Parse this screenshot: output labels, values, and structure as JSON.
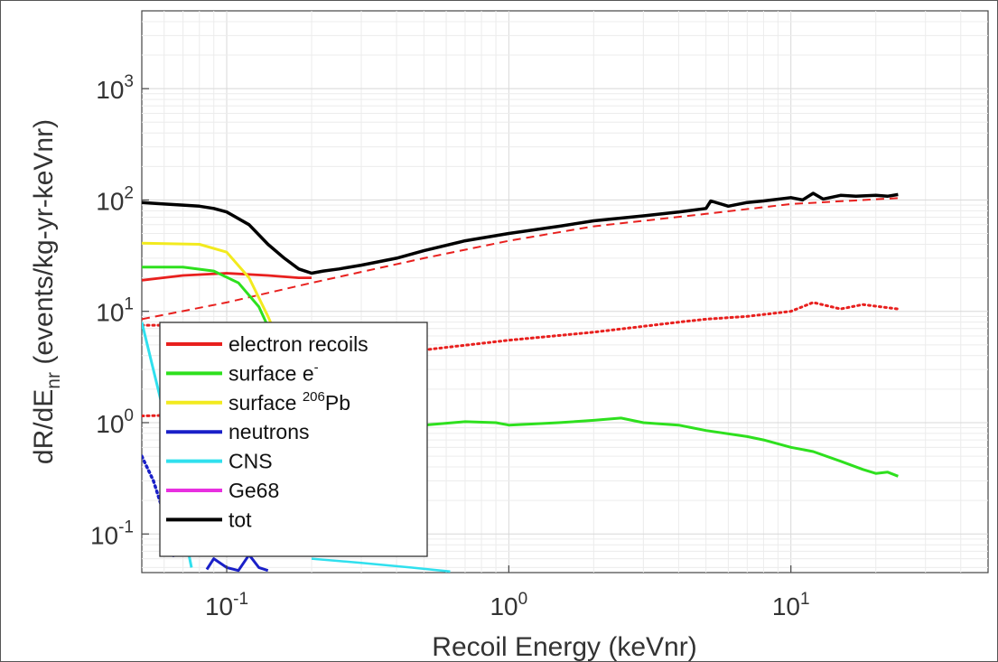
{
  "chart_data": {
    "type": "line",
    "xlabel": "Recoil Energy (keVnr)",
    "ylabel_main": "dR/dE",
    "ylabel_sub": "nr",
    "ylabel_rest": " (events/kg-yr-keVnr)",
    "x_scale": "log",
    "y_scale": "log",
    "xlim": [
      0.05,
      50
    ],
    "ylim": [
      0.045,
      5000
    ],
    "grid": true,
    "legend_position": "bottom-left",
    "x_ticks": [
      {
        "value": 0.1,
        "base": "10",
        "exp": "-1"
      },
      {
        "value": 1,
        "base": "10",
        "exp": "0"
      },
      {
        "value": 10,
        "base": "10",
        "exp": "1"
      }
    ],
    "y_ticks": [
      {
        "value": 0.1,
        "base": "10",
        "exp": "-1"
      },
      {
        "value": 1,
        "base": "10",
        "exp": "0"
      },
      {
        "value": 10,
        "base": "10",
        "exp": "1"
      },
      {
        "value": 100,
        "base": "10",
        "exp": "2"
      },
      {
        "value": 1000,
        "base": "10",
        "exp": "3"
      }
    ],
    "legend": [
      {
        "label": "electron recoils",
        "sup": "",
        "suffix": "",
        "color": "#e8201e"
      },
      {
        "label": "surface e",
        "sup": "-",
        "suffix": "",
        "color": "#2ee01e"
      },
      {
        "label": "surface ",
        "sup": "206",
        "suffix": "Pb",
        "color": "#f2ea1e"
      },
      {
        "label": "neutrons",
        "sup": "",
        "suffix": "",
        "color": "#1a20c8"
      },
      {
        "label": "CNS",
        "sup": "",
        "suffix": "",
        "color": "#30e0ee"
      },
      {
        "label": "Ge68",
        "sup": "",
        "suffix": "",
        "color": "#e830e0"
      },
      {
        "label": "tot",
        "sup": "",
        "suffix": "",
        "color": "#000000"
      }
    ],
    "series": [
      {
        "name": "tot",
        "color": "#000000",
        "style": "solid",
        "width": 3.5,
        "x": [
          0.05,
          0.06,
          0.07,
          0.08,
          0.09,
          0.1,
          0.12,
          0.14,
          0.16,
          0.18,
          0.2,
          0.22,
          0.25,
          0.3,
          0.4,
          0.5,
          0.7,
          1,
          1.5,
          2,
          3,
          4,
          5,
          5.2,
          6,
          7,
          8,
          10,
          11,
          12,
          13,
          15,
          17,
          20,
          22,
          24
        ],
        "y": [
          95,
          92,
          90,
          88,
          84,
          78,
          60,
          40,
          30,
          24,
          22,
          23,
          24,
          26,
          30,
          35,
          43,
          50,
          58,
          65,
          72,
          78,
          84,
          98,
          88,
          95,
          98,
          105,
          100,
          115,
          102,
          110,
          108,
          110,
          108,
          112
        ]
      },
      {
        "name": "electron recoils",
        "color": "#e8201e",
        "style": "solid",
        "width": 2.8,
        "x": [
          0.05,
          0.07,
          0.1,
          0.14,
          0.18,
          0.2
        ],
        "y": [
          19,
          21,
          22,
          21,
          20,
          20
        ]
      },
      {
        "name": "electron recoils (dashed)",
        "color": "#e8201e",
        "style": "dashed",
        "width": 2,
        "x": [
          0.05,
          0.1,
          0.2,
          0.5,
          1,
          2,
          5,
          10,
          24
        ],
        "y": [
          8.5,
          12,
          18,
          30,
          43,
          58,
          75,
          92,
          104
        ]
      },
      {
        "name": "electron recoils (dotted)",
        "color": "#e8201e",
        "style": "dotted",
        "width": 3,
        "x": [
          0.05,
          0.08,
          0.1,
          0.15,
          0.2,
          0.3,
          0.5,
          1,
          2,
          4,
          5,
          7,
          10,
          12,
          15,
          18,
          24
        ],
        "y": [
          7.5,
          7.5,
          6.5,
          4.5,
          3,
          3.5,
          4.5,
          5.5,
          6.5,
          8,
          8.5,
          9,
          10,
          12,
          10.5,
          11.5,
          10.5
        ]
      },
      {
        "name": "electron recoils (dotted low)",
        "color": "#e8201e",
        "style": "dotted",
        "width": 3,
        "x": [
          0.05,
          0.08,
          0.12
        ],
        "y": [
          1.15,
          1.18,
          1.1
        ]
      },
      {
        "name": "surface e",
        "color": "#2ee01e",
        "style": "solid",
        "width": 3,
        "x": [
          0.05,
          0.07,
          0.09,
          0.11,
          0.13,
          0.15
        ],
        "y": [
          25,
          25,
          23,
          18,
          11,
          5
        ]
      },
      {
        "name": "surface e (tail)",
        "color": "#2ee01e",
        "style": "solid",
        "width": 3,
        "x": [
          0.4,
          0.5,
          0.7,
          0.9,
          1,
          1.5,
          2,
          2.5,
          3,
          4,
          5,
          7,
          8,
          10,
          12,
          15,
          18,
          20,
          22,
          24
        ],
        "y": [
          0.9,
          0.95,
          1.02,
          1.0,
          0.95,
          1.0,
          1.05,
          1.1,
          1.0,
          0.95,
          0.85,
          0.75,
          0.7,
          0.6,
          0.55,
          0.45,
          0.38,
          0.35,
          0.36,
          0.33
        ]
      },
      {
        "name": "surface 206Pb",
        "color": "#f2ea1e",
        "style": "solid",
        "width": 3,
        "x": [
          0.05,
          0.08,
          0.1,
          0.12,
          0.14,
          0.155
        ],
        "y": [
          41,
          40,
          34,
          20,
          9,
          5
        ]
      },
      {
        "name": "CNS",
        "color": "#30e0ee",
        "style": "solid",
        "width": 3,
        "x": [
          0.05,
          0.06,
          0.07,
          0.075
        ],
        "y": [
          8,
          1.2,
          0.12,
          0.05
        ]
      },
      {
        "name": "CNS (tail)",
        "color": "#30e0ee",
        "style": "solid",
        "width": 2.5,
        "x": [
          0.2,
          0.3,
          0.45,
          0.62
        ],
        "y": [
          0.06,
          0.055,
          0.05,
          0.046
        ]
      },
      {
        "name": "neutrons",
        "color": "#1a20c8",
        "style": "dotted",
        "width": 3.5,
        "x": [
          0.05,
          0.055,
          0.06,
          0.065
        ],
        "y": [
          0.5,
          0.3,
          0.15,
          0.06
        ]
      },
      {
        "name": "neutrons (low)",
        "color": "#1a20c8",
        "style": "solid",
        "width": 3,
        "x": [
          0.085,
          0.09,
          0.1,
          0.11,
          0.12,
          0.13,
          0.14
        ],
        "y": [
          0.048,
          0.06,
          0.05,
          0.047,
          0.065,
          0.05,
          0.047
        ]
      }
    ]
  }
}
